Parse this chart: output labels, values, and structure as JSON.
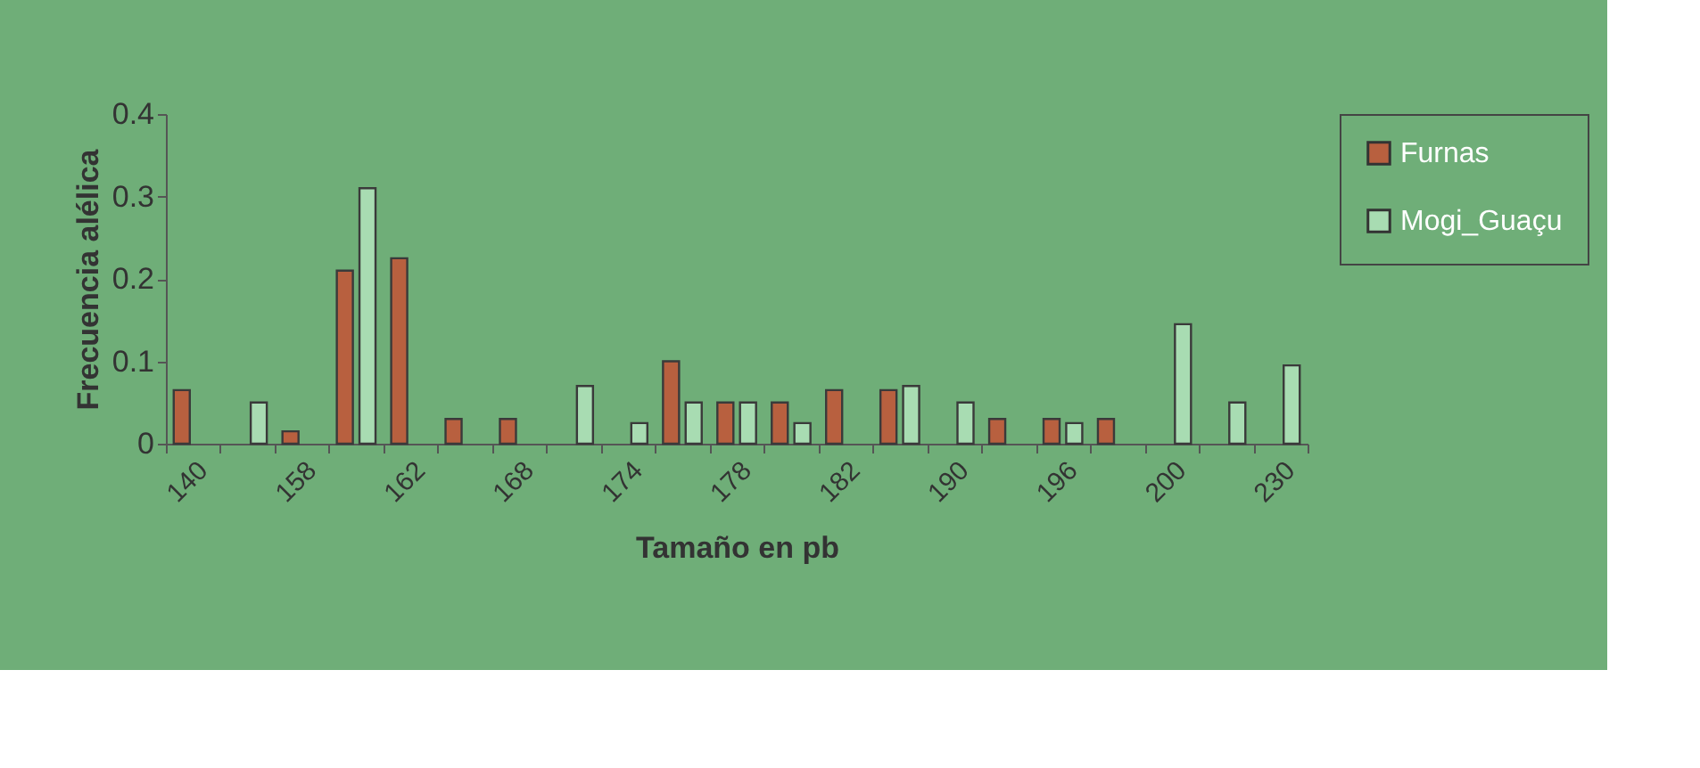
{
  "chart_data": {
    "type": "bar",
    "xlabel": "Tamaño en pb",
    "ylabel": "Frecuencia alélica",
    "categories": [
      "140",
      null,
      "158",
      null,
      "162",
      null,
      "168",
      null,
      "174",
      null,
      "178",
      null,
      "182",
      null,
      "190",
      null,
      "196",
      null,
      "200",
      null,
      "230"
    ],
    "series": [
      {
        "name": "Furnas",
        "color": "#b8603f",
        "values": [
          0.065,
          null,
          0.015,
          0.21,
          0.225,
          0.03,
          0.03,
          null,
          null,
          0.1,
          0.05,
          0.05,
          0.065,
          0.065,
          null,
          0.03,
          0.03,
          0.03,
          null,
          null,
          null
        ]
      },
      {
        "name": "Mogi_Guaçu",
        "color": "#a8dcb2",
        "values": [
          null,
          0.05,
          null,
          0.31,
          null,
          null,
          null,
          0.07,
          0.025,
          0.05,
          0.05,
          0.025,
          null,
          0.07,
          0.05,
          null,
          0.025,
          null,
          0.145,
          0.05,
          0.095
        ]
      }
    ],
    "ylim": [
      0,
      0.4
    ],
    "yticks": [
      0,
      0.1,
      0.2,
      0.3,
      0.4
    ],
    "grid": false,
    "legend": "right"
  }
}
